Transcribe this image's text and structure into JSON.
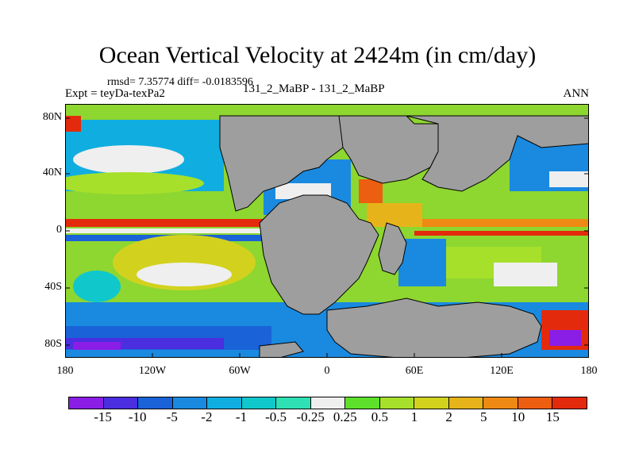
{
  "title": "Ocean Vertical Velocity at 2424m (in cm/day)",
  "stats": "rmsd= 7.35774 diff= -0.0183596",
  "experiment": "Expt = teyDa-texPa2",
  "subtitle": "131_2_MaBP - 131_2_MaBP",
  "season": "ANN",
  "lat_labels": [
    "80N",
    "40N",
    "0",
    "40S",
    "80S"
  ],
  "lon_labels": [
    "180",
    "120W",
    "60W",
    "0",
    "60E",
    "120E",
    "180"
  ],
  "colorbar": {
    "colors": [
      "#8a1ee6",
      "#4a2ee0",
      "#1a62d8",
      "#1a8ae0",
      "#10aee0",
      "#10c8cc",
      "#2ee0b4",
      "#efefef",
      "#5ee02a",
      "#a6e02a",
      "#d2d21e",
      "#e6b41a",
      "#ee8a14",
      "#ec5e10",
      "#e42a0c"
    ],
    "labels": [
      "-15",
      "-10",
      "-5",
      "-2",
      "-1",
      "-0.5",
      "-0.25",
      "0.25",
      "0.5",
      "1",
      "2",
      "5",
      "10",
      "15"
    ]
  },
  "colors": {
    "land": "#9e9e9e",
    "ocean_base": "#8ed630"
  }
}
